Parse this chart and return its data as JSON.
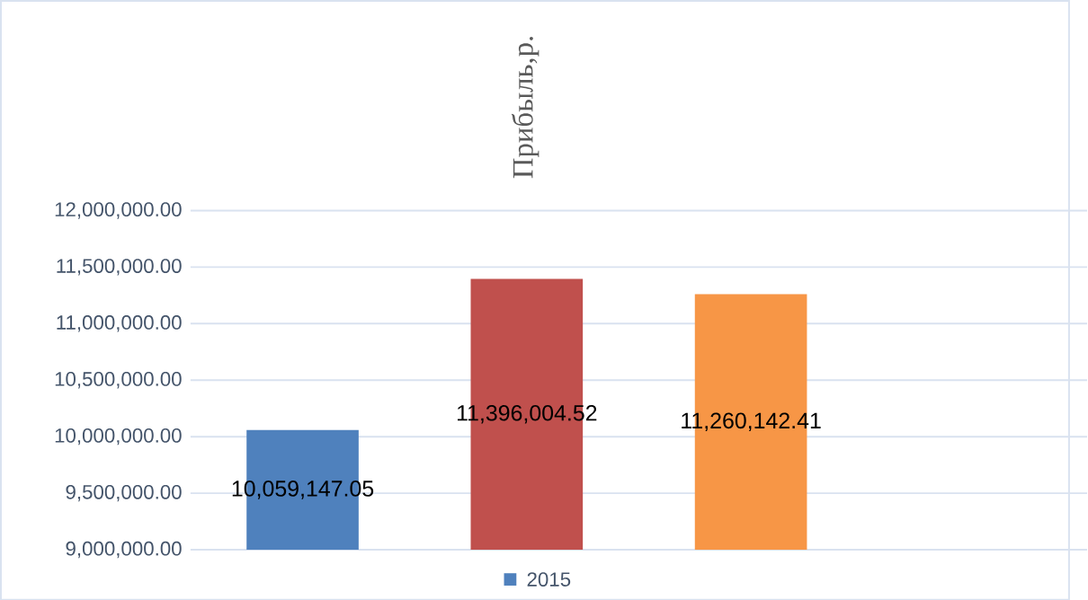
{
  "chart_data": {
    "type": "bar",
    "title": "Прибыль,р.",
    "categories": [
      null,
      null,
      null,
      null
    ],
    "series": [
      {
        "name": "2015",
        "color": "#4f81bd",
        "colors": [
          "#4f81bd",
          "#c0504d",
          "#f79646",
          "#4f81bd"
        ],
        "values": [
          10059147.05,
          11396004.52,
          11260142.41,
          null
        ],
        "value_labels": [
          "10,059,147.05",
          "11,396,004.52",
          "11,260,142.41",
          null
        ]
      }
    ],
    "ylim": [
      9000000,
      12000000
    ],
    "yticks": [
      {
        "value": 9000000,
        "label": "9,000,000.00"
      },
      {
        "value": 9500000,
        "label": "9,500,000.00"
      },
      {
        "value": 10000000,
        "label": "10,000,000.00"
      },
      {
        "value": 10500000,
        "label": "10,500,000.00"
      },
      {
        "value": 11000000,
        "label": "11,000,000.00"
      },
      {
        "value": 11500000,
        "label": "11,500,000.00"
      },
      {
        "value": 12000000,
        "label": "12,000,000.00"
      }
    ],
    "grid": "y",
    "legend": "bottom"
  }
}
